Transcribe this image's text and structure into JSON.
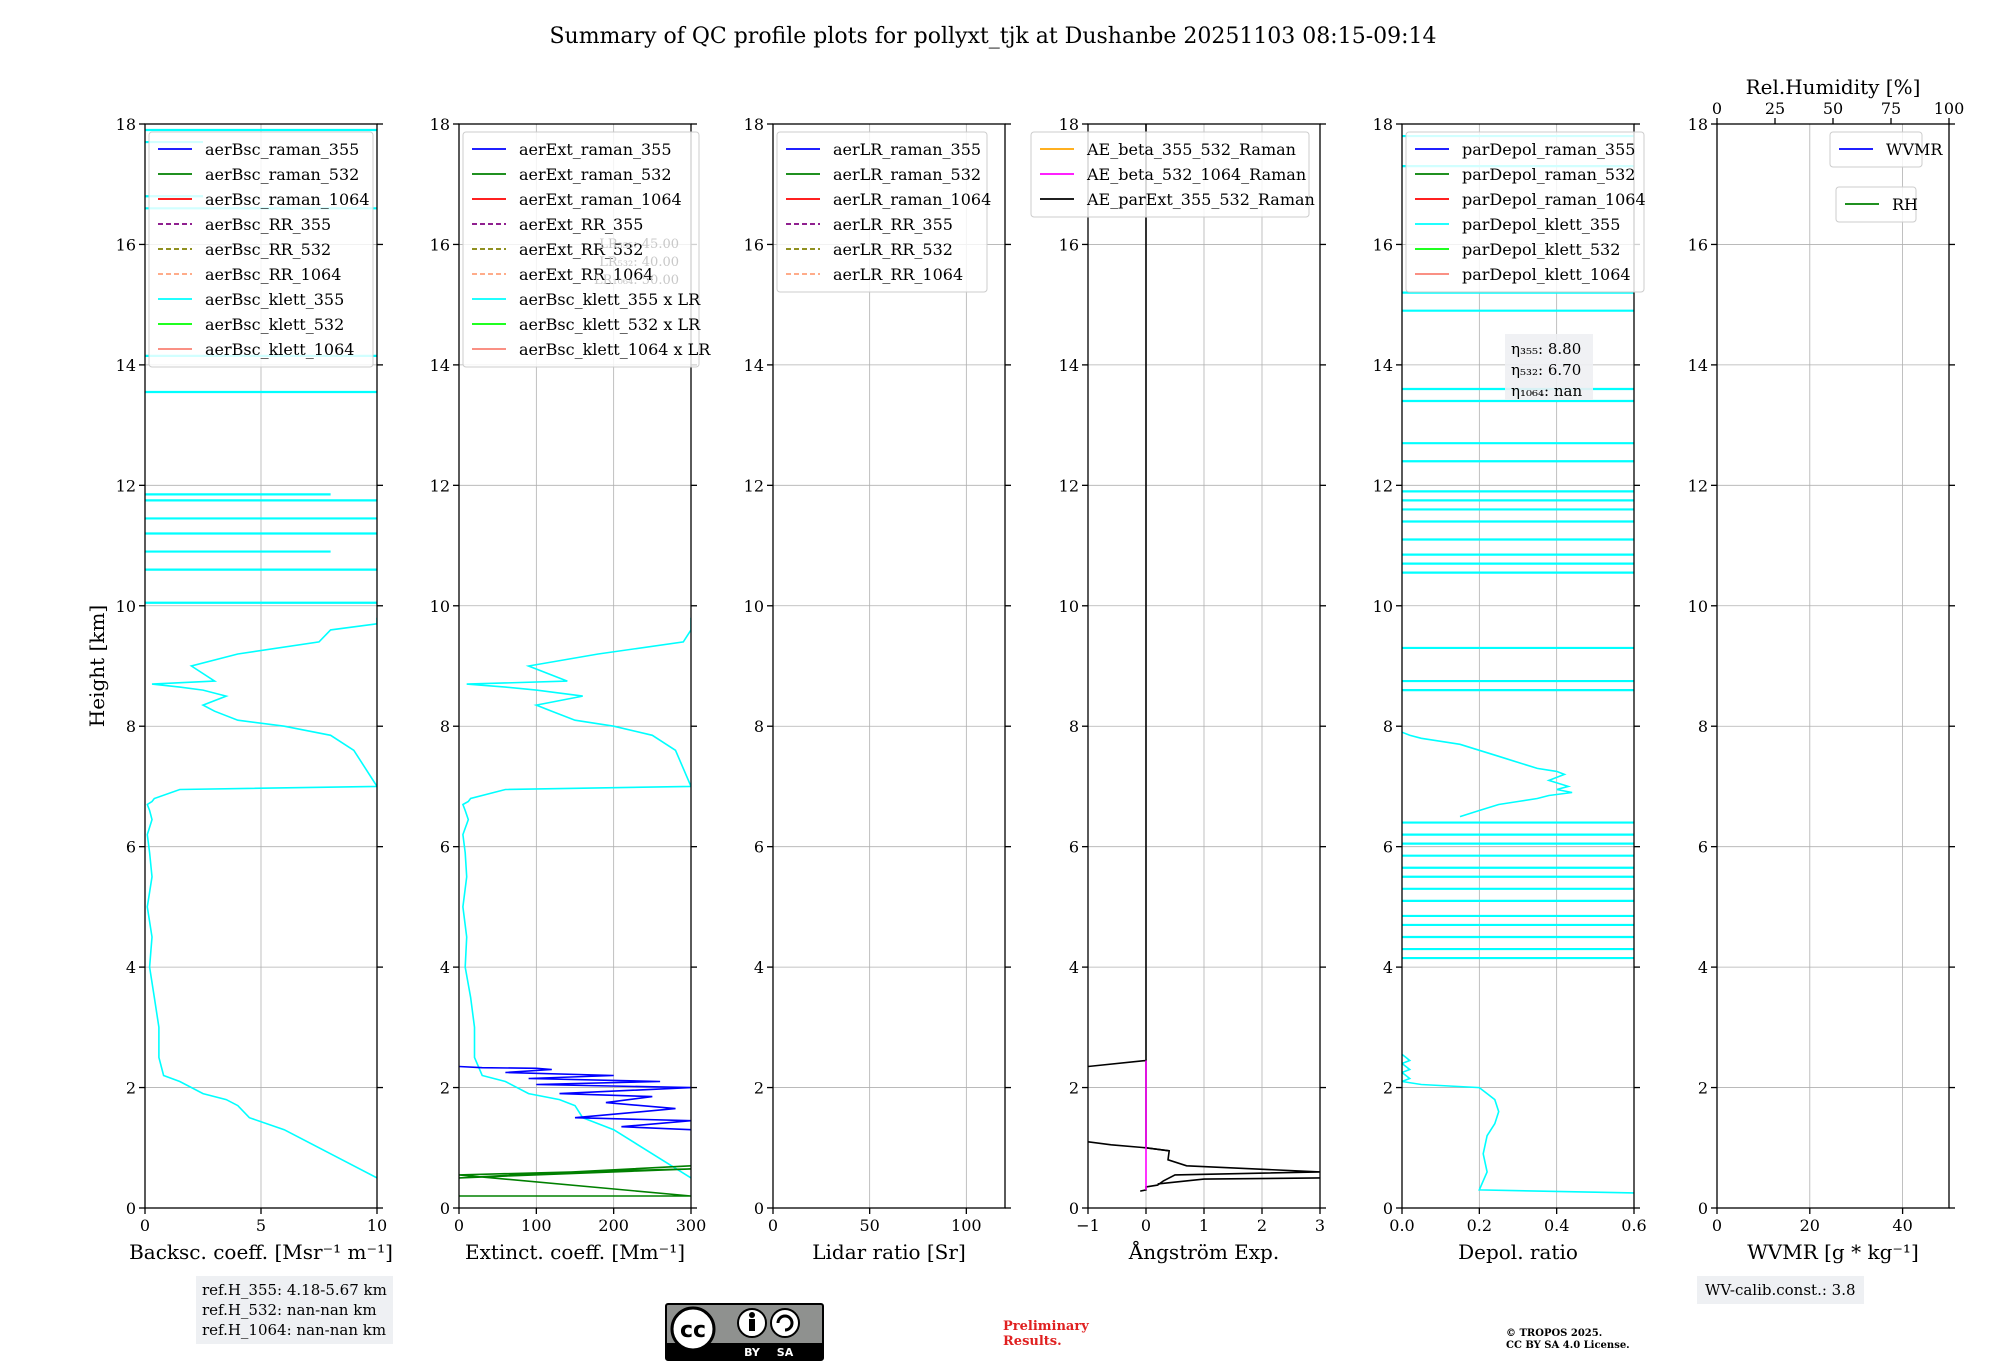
{
  "title": "Summary of QC profile plots for pollyxt_tjk at Dushanbe 20251103 08:15-09:14",
  "colors": {
    "raman_355": "#0000ff",
    "raman_532": "#008000",
    "raman_1064": "#ff0000",
    "rr_355": "#800080",
    "rr_532": "#808000",
    "rr_1064": "#ffa07a",
    "klett_355": "#00ffff",
    "klett_532": "#00ff00",
    "klett_1064": "#fa8072",
    "ae1": "#ffa500",
    "ae2": "#ff00ff",
    "ae3": "#000000"
  },
  "chart_data": [
    {
      "type": "line",
      "id": "bsc",
      "xlabel": "Backsc. coeff. [Msr⁻¹ m⁻¹]",
      "ylabel": "Height [km]",
      "xlim": [
        0,
        10
      ],
      "ylim": [
        0,
        18
      ],
      "xticks": [
        0,
        5,
        10
      ],
      "yticks": [
        0,
        2,
        4,
        6,
        8,
        10,
        12,
        14,
        16,
        18
      ],
      "legend": [
        "aerBsc_raman_355",
        "aerBsc_raman_532",
        "aerBsc_raman_1064",
        "aerBsc_RR_355",
        "aerBsc_RR_532",
        "aerBsc_RR_1064",
        "aerBsc_klett_355",
        "aerBsc_klett_532",
        "aerBsc_klett_1064"
      ],
      "legend_colors": [
        "raman_355",
        "raman_532",
        "raman_1064",
        "rr_355",
        "rr_532",
        "rr_1064",
        "klett_355",
        "klett_532",
        "klett_1064"
      ],
      "legend_dashed": [
        false,
        false,
        false,
        true,
        true,
        true,
        false,
        false,
        false
      ],
      "series": [
        {
          "name": "aerBsc_klett_355",
          "color": "klett_355",
          "x": [
            10,
            8,
            6,
            4.5,
            4,
            3.5,
            2.5,
            1.5,
            0.8,
            0.6,
            0.6,
            0.4,
            0.2,
            0.3,
            0.1,
            0.3,
            0.2,
            0.1,
            0.3,
            0.2,
            0.1,
            0.3,
            0.4,
            1.5,
            10,
            9,
            8,
            6,
            4,
            3,
            2.5,
            3.5,
            2.5,
            1.5,
            0.3,
            3,
            2,
            4,
            7.5,
            8,
            10,
            10
          ],
          "y": [
            0.5,
            0.9,
            1.3,
            1.5,
            1.7,
            1.8,
            1.9,
            2.1,
            2.2,
            2.5,
            3,
            3.5,
            4,
            4.5,
            5,
            5.5,
            5.9,
            6.2,
            6.45,
            6.6,
            6.7,
            6.75,
            6.8,
            6.95,
            7.0,
            7.6,
            7.85,
            8.0,
            8.1,
            8.25,
            8.35,
            8.5,
            8.6,
            8.65,
            8.7,
            8.75,
            9.0,
            9.2,
            9.4,
            9.6,
            9.7,
            9.8
          ]
        },
        {
          "name": "aerBsc_klett_355_spikes",
          "color": "klett_355",
          "x": [
            0,
            10,
            0,
            10,
            0,
            8,
            0,
            10,
            0,
            10,
            0,
            10,
            0,
            8,
            0,
            10,
            0,
            10,
            0,
            10,
            0,
            2.5,
            0,
            2.5,
            0,
            10
          ],
          "y": [
            10.05,
            10.05,
            10.6,
            10.6,
            10.9,
            10.9,
            11.2,
            11.2,
            11.45,
            11.45,
            11.75,
            11.75,
            11.85,
            11.85,
            13.55,
            13.55,
            14.15,
            14.15,
            16.6,
            16.6,
            16.8,
            16.8,
            17.7,
            17.7,
            17.9,
            17.9
          ],
          "segments": true
        }
      ]
    },
    {
      "type": "line",
      "id": "ext",
      "xlabel": "Extinct. coeff. [Mm⁻¹]",
      "xlim": [
        0,
        300
      ],
      "ylim": [
        0,
        18
      ],
      "xticks": [
        0,
        100,
        200,
        300
      ],
      "yticks": [
        0,
        2,
        4,
        6,
        8,
        10,
        12,
        14,
        16,
        18
      ],
      "legend": [
        "aerExt_raman_355",
        "aerExt_raman_532",
        "aerExt_raman_1064",
        "aerExt_RR_355",
        "aerExt_RR_532",
        "aerExt_RR_1064",
        "aerBsc_klett_355 x LR",
        "aerBsc_klett_532 x LR",
        "aerBsc_klett_1064 x LR"
      ],
      "legend_colors": [
        "raman_355",
        "raman_532",
        "raman_1064",
        "rr_355",
        "rr_532",
        "rr_1064",
        "klett_355",
        "klett_532",
        "klett_1064"
      ],
      "legend_dashed": [
        false,
        false,
        false,
        true,
        true,
        true,
        false,
        false,
        false
      ],
      "lr_labels": [
        "LR₃₅₅: 45.00",
        "LR₅₃₂: 40.00",
        "LR₁₀₆₄: 50.00"
      ],
      "series": [
        {
          "name": "klett_355_x_LR",
          "color": "klett_355",
          "x": [
            300,
            250,
            200,
            160,
            150,
            130,
            90,
            60,
            30,
            20,
            20,
            15,
            8,
            10,
            5,
            10,
            8,
            5,
            12,
            8,
            5,
            12,
            15,
            60,
            300,
            280,
            250,
            200,
            150,
            120,
            100,
            160,
            100,
            60,
            10,
            140,
            90,
            180,
            290,
            300,
            300,
            300
          ],
          "y": [
            0.5,
            0.9,
            1.3,
            1.5,
            1.7,
            1.8,
            1.9,
            2.1,
            2.2,
            2.5,
            3,
            3.5,
            4,
            4.5,
            5,
            5.5,
            5.9,
            6.2,
            6.45,
            6.6,
            6.7,
            6.75,
            6.8,
            6.95,
            7.0,
            7.6,
            7.85,
            8.0,
            8.1,
            8.25,
            8.35,
            8.5,
            8.6,
            8.65,
            8.7,
            8.75,
            9.0,
            9.2,
            9.4,
            9.6,
            9.7,
            9.8
          ]
        },
        {
          "name": "raman_355",
          "color": "raman_355",
          "x": [
            300,
            210,
            300,
            150,
            280,
            190,
            250,
            130,
            300,
            100,
            260,
            90,
            200,
            60,
            120,
            100,
            30,
            0
          ],
          "y": [
            1.3,
            1.35,
            1.45,
            1.5,
            1.65,
            1.75,
            1.85,
            1.9,
            2.0,
            2.05,
            2.1,
            2.15,
            2.2,
            2.25,
            2.3,
            2.32,
            2.33,
            2.35
          ]
        },
        {
          "name": "raman_532",
          "color": "raman_532",
          "x": [
            0,
            300,
            0,
            300,
            0,
            300
          ],
          "y": [
            0.2,
            0.2,
            0.55,
            0.65,
            0.5,
            0.7
          ]
        }
      ]
    },
    {
      "type": "line",
      "id": "lr",
      "xlabel": "Lidar ratio [Sr]",
      "xlim": [
        0,
        120
      ],
      "ylim": [
        0,
        18
      ],
      "xticks": [
        0,
        50,
        100
      ],
      "yticks": [
        0,
        2,
        4,
        6,
        8,
        10,
        12,
        14,
        16,
        18
      ],
      "legend": [
        "aerLR_raman_355",
        "aerLR_raman_532",
        "aerLR_raman_1064",
        "aerLR_RR_355",
        "aerLR_RR_532",
        "aerLR_RR_1064"
      ],
      "legend_colors": [
        "raman_355",
        "raman_532",
        "raman_1064",
        "rr_355",
        "rr_532",
        "rr_1064"
      ],
      "legend_dashed": [
        false,
        false,
        false,
        true,
        true,
        true
      ],
      "series": []
    },
    {
      "type": "line",
      "id": "ae",
      "xlabel": "Ångström Exp.",
      "xlim": [
        -1,
        3
      ],
      "ylim": [
        0,
        18
      ],
      "xticks": [
        -1,
        0,
        1,
        2,
        3
      ],
      "yticks": [
        0,
        2,
        4,
        6,
        8,
        10,
        12,
        14,
        16,
        18
      ],
      "legend": [
        "AE_beta_355_532_Raman",
        "AE_beta_532_1064_Raman",
        "AE_parExt_355_532_Raman"
      ],
      "legend_colors": [
        "ae1",
        "ae2",
        "ae3"
      ],
      "legend_dashed": [
        false,
        false,
        false
      ],
      "series": [
        {
          "name": "AE_parExt_355_532_Raman",
          "color": "ae3",
          "x": [
            0,
            0,
            -1,
            0,
            0,
            0.4,
            0.38,
            0.7,
            3,
            0.5,
            0.3,
            0.2,
            0,
            0,
            -0.1
          ],
          "y": [
            18,
            2.45,
            2.35,
            2.45,
            1.0,
            0.95,
            0.8,
            0.7,
            0.6,
            0.55,
            0.45,
            0.38,
            0.35,
            0.3,
            0.28
          ]
        },
        {
          "name": "AE_parExt_low",
          "color": "ae3",
          "x": [
            -1,
            -0.6,
            0,
            0.4
          ],
          "y": [
            1.1,
            1.05,
            1.0,
            0.95
          ]
        },
        {
          "name": "AE_parExt_low2",
          "color": "ae3",
          "x": [
            0.2,
            1,
            3
          ],
          "y": [
            0.4,
            0.48,
            0.5
          ]
        },
        {
          "name": "AE_beta_532_1064_Raman",
          "color": "ae2",
          "x": [
            0,
            0
          ],
          "y": [
            0.3,
            2.45
          ]
        }
      ]
    },
    {
      "type": "line",
      "id": "depol",
      "xlabel": "Depol. ratio",
      "xlim": [
        0,
        0.6
      ],
      "ylim": [
        0,
        18
      ],
      "xticks": [
        0,
        0.2,
        0.4,
        0.6
      ],
      "xtick_labels": [
        "0.0",
        "0.2",
        "0.4",
        "0.6"
      ],
      "yticks": [
        0,
        2,
        4,
        6,
        8,
        10,
        12,
        14,
        16,
        18
      ],
      "legend": [
        "parDepol_raman_355",
        "parDepol_raman_532",
        "parDepol_raman_1064",
        "parDepol_klett_355",
        "parDepol_klett_532",
        "parDepol_klett_1064"
      ],
      "legend_colors": [
        "raman_355",
        "raman_532",
        "raman_1064",
        "klett_355",
        "klett_532",
        "klett_1064"
      ],
      "legend_dashed": [
        false,
        false,
        false,
        false,
        false,
        false
      ],
      "eta_labels": [
        "η₃₅₅: 8.80",
        "η₅₃₂: 6.70",
        "η₁₀₆₄: nan"
      ],
      "series": [
        {
          "name": "parDepol_klett_355",
          "color": "klett_355",
          "x": [
            0.6,
            0.2,
            0.22,
            0.21,
            0.22,
            0.24,
            0.25,
            0.24,
            0.22,
            0.2,
            0.05,
            0.0,
            0.02,
            0.01,
            0.0,
            0.02,
            0.01,
            0.0,
            0.02,
            0.01,
            0.0
          ],
          "y": [
            0.25,
            0.3,
            0.6,
            0.9,
            1.2,
            1.4,
            1.6,
            1.8,
            1.9,
            2.0,
            2.05,
            2.1,
            2.15,
            2.2,
            2.25,
            2.3,
            2.35,
            2.4,
            2.45,
            2.5,
            2.55
          ]
        },
        {
          "name": "parDepol_klett_355_mid",
          "color": "klett_355",
          "x": [
            0.0,
            0.02,
            0.05,
            0.1,
            0.15,
            0.2,
            0.25,
            0.3,
            0.35,
            0.4,
            0.42,
            0.38,
            0.43,
            0.4,
            0.44,
            0.38,
            0.35,
            0.3,
            0.25,
            0.2,
            0.15
          ],
          "y": [
            7.9,
            7.85,
            7.8,
            7.75,
            7.7,
            7.6,
            7.5,
            7.4,
            7.3,
            7.25,
            7.2,
            7.1,
            7.0,
            6.95,
            6.9,
            6.85,
            6.8,
            6.75,
            6.7,
            6.6,
            6.5
          ]
        },
        {
          "name": "parDepol_klett_355_spikes",
          "color": "klett_355",
          "x": [
            0,
            0.6,
            0,
            0.6,
            0,
            0.6,
            0,
            0.6,
            0,
            0.6,
            0,
            0.6,
            0,
            0.6,
            0,
            0.6,
            0,
            0.6,
            0,
            0.6,
            0,
            0.6,
            0,
            0.6,
            0,
            0.6,
            0,
            0.6,
            0,
            0.6,
            0,
            0.6,
            0,
            0.6,
            0,
            0.6,
            0,
            0.6,
            0,
            0.6,
            0,
            0.6,
            0,
            0.6,
            0,
            0.6,
            0,
            0.6,
            0,
            0.6,
            0,
            0.6,
            0,
            0.6,
            0,
            0.6,
            0,
            0.6,
            0,
            0.6,
            0,
            0.6,
            0,
            0.6
          ],
          "y": [
            4.15,
            4.15,
            4.3,
            4.3,
            4.5,
            4.5,
            4.7,
            4.7,
            4.85,
            4.85,
            5.1,
            5.1,
            5.3,
            5.3,
            5.5,
            5.5,
            5.65,
            5.65,
            5.85,
            5.85,
            6.05,
            6.05,
            6.2,
            6.2,
            6.4,
            6.4,
            8.6,
            8.6,
            8.75,
            8.75,
            9.3,
            9.3,
            10.55,
            10.55,
            10.7,
            10.7,
            10.85,
            10.85,
            11.1,
            11.1,
            11.4,
            11.4,
            11.6,
            11.6,
            11.75,
            11.75,
            11.9,
            11.9,
            12.4,
            12.4,
            12.7,
            12.7,
            13.4,
            13.4,
            13.6,
            13.6,
            14.9,
            14.9,
            15.2,
            15.2,
            17.3,
            17.3,
            17.8,
            17.8
          ],
          "segments": true
        }
      ]
    },
    {
      "type": "line",
      "id": "wv",
      "xlabel": "WVMR [g * kg⁻¹]",
      "top_xlabel": "Rel.Humidity [%]",
      "xlim": [
        0,
        50
      ],
      "ylim": [
        0,
        18
      ],
      "xticks": [
        0,
        20,
        40
      ],
      "yticks": [
        0,
        2,
        4,
        6,
        8,
        10,
        12,
        14,
        16,
        18
      ],
      "top_xlim": [
        0,
        100
      ],
      "top_xticks": [
        0,
        25,
        50,
        75,
        100
      ],
      "legend": [
        "WVMR"
      ],
      "legend_colors": [
        "raman_355"
      ],
      "legend_dashed": [
        false
      ],
      "legend2": [
        "RH"
      ],
      "legend2_colors": [
        "raman_532"
      ],
      "series": []
    }
  ],
  "ref_heights": [
    "ref.H_355: 4.18-5.67 km",
    "ref.H_532: nan-nan km",
    "ref.H_1064: nan-nan km"
  ],
  "wv_calib": "WV-calib.const.: 3.8",
  "license_logo": {
    "cc": "cc",
    "by": "BY",
    "sa": "SA"
  },
  "preliminary": [
    "Preliminary",
    "Results."
  ],
  "copyright": [
    "© TROPOS 2025.",
    "CC BY SA 4.0 License."
  ]
}
